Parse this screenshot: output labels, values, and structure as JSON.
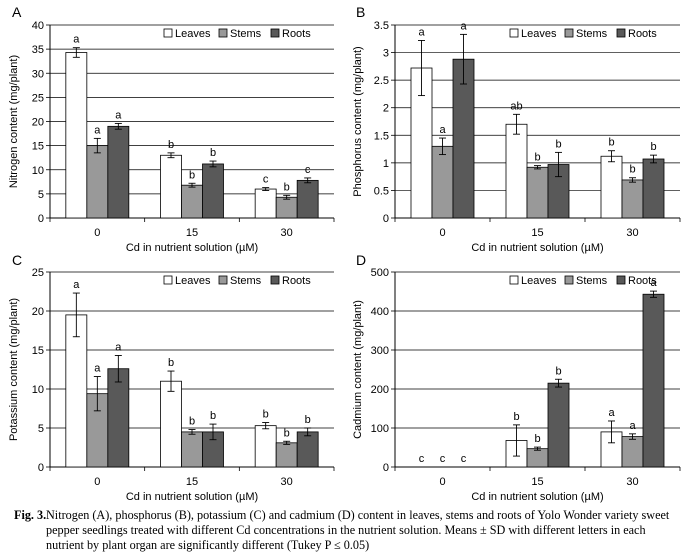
{
  "chart_data": [
    {
      "panel": "A",
      "type": "bar",
      "ylabel": "Nitrogen content (mg/plant)",
      "xlabel": "Cd in nutrient solution (µM)",
      "categories": [
        "0",
        "15",
        "30"
      ],
      "ylim": [
        0,
        40
      ],
      "yticks": [
        "0",
        "5",
        "10",
        "15",
        "20",
        "25",
        "30",
        "35",
        "40"
      ],
      "legend_position": "top-right",
      "series": [
        {
          "name": "Leaves",
          "values": [
            34.3,
            13.0,
            6.0
          ],
          "errors": [
            1.0,
            0.5,
            0.3
          ],
          "letters": [
            "a",
            "b",
            "c"
          ]
        },
        {
          "name": "Stems",
          "values": [
            15.0,
            6.8,
            4.3
          ],
          "errors": [
            1.5,
            0.4,
            0.4
          ],
          "letters": [
            "a",
            "b",
            "b"
          ]
        },
        {
          "name": "Roots",
          "values": [
            19.0,
            11.2,
            7.8
          ],
          "errors": [
            0.6,
            0.6,
            0.5
          ],
          "letters": [
            "a",
            "b",
            "c"
          ]
        }
      ]
    },
    {
      "panel": "B",
      "type": "bar",
      "ylabel": "Phosphorus content (mg/plant)",
      "xlabel": "Cd in nutrient solution (µM)",
      "categories": [
        "0",
        "15",
        "30"
      ],
      "ylim": [
        0,
        3.5
      ],
      "yticks": [
        "0",
        "0.5",
        "1",
        "1.5",
        "2",
        "2.5",
        "3",
        "3.5"
      ],
      "legend_position": "top-right",
      "series": [
        {
          "name": "Leaves",
          "values": [
            2.72,
            1.7,
            1.12
          ],
          "errors": [
            0.5,
            0.18,
            0.1
          ],
          "letters": [
            "a",
            "ab",
            "b"
          ]
        },
        {
          "name": "Stems",
          "values": [
            1.3,
            0.92,
            0.69
          ],
          "errors": [
            0.15,
            0.03,
            0.04
          ],
          "letters": [
            "a",
            "b",
            "b"
          ]
        },
        {
          "name": "Roots",
          "values": [
            2.88,
            0.97,
            1.07
          ],
          "errors": [
            0.45,
            0.22,
            0.07
          ],
          "letters": [
            "a",
            "b",
            "b"
          ]
        }
      ]
    },
    {
      "panel": "C",
      "type": "bar",
      "ylabel": "Potassium content (mg/plant)",
      "xlabel": "Cd in nutrient solution (µM)",
      "categories": [
        "0",
        "15",
        "30"
      ],
      "ylim": [
        0,
        25
      ],
      "yticks": [
        "0",
        "5",
        "10",
        "15",
        "20",
        "25"
      ],
      "legend_position": "top-right",
      "series": [
        {
          "name": "Leaves",
          "values": [
            19.5,
            11.0,
            5.3
          ],
          "errors": [
            2.8,
            1.3,
            0.4
          ],
          "letters": [
            "a",
            "b",
            "b"
          ]
        },
        {
          "name": "Stems",
          "values": [
            9.4,
            4.5,
            3.1
          ],
          "errors": [
            2.2,
            0.3,
            0.2
          ],
          "letters": [
            "a",
            "b",
            "b"
          ]
        },
        {
          "name": "Roots",
          "values": [
            12.6,
            4.5,
            4.5
          ],
          "errors": [
            1.7,
            1.0,
            0.5
          ],
          "letters": [
            "a",
            "b",
            "b"
          ]
        }
      ]
    },
    {
      "panel": "D",
      "type": "bar",
      "ylabel": "Cadmium content (mg/plant)",
      "xlabel": "Cd in nutrient solution (µM)",
      "categories": [
        "0",
        "15",
        "30"
      ],
      "ylim": [
        0,
        500
      ],
      "yticks": [
        "0",
        "100",
        "200",
        "300",
        "400",
        "500"
      ],
      "legend_position": "top-right",
      "series": [
        {
          "name": "Leaves",
          "values": [
            0,
            68,
            90
          ],
          "errors": [
            0,
            40,
            28
          ],
          "letters": [
            "c",
            "b",
            "a"
          ]
        },
        {
          "name": "Stems",
          "values": [
            0,
            47,
            78
          ],
          "errors": [
            0,
            4,
            7
          ],
          "letters": [
            "c",
            "b",
            "a"
          ]
        },
        {
          "name": "Roots",
          "values": [
            0,
            215,
            443
          ],
          "errors": [
            0,
            10,
            8
          ],
          "letters": [
            "c",
            "b",
            "a"
          ]
        }
      ]
    }
  ],
  "colors": {
    "Leaves": "#ffffff",
    "Stems": "#999999",
    "Roots": "#595959"
  },
  "caption": {
    "label": "Fig. 3.",
    "text": "Nitrogen (A), phosphorus (B), potassium (C) and cadmium (D) content in leaves, stems and roots of Yolo Wonder variety sweet pepper seedlings treated with different Cd concentrations in the nutrient solution. Means ± SD with different letters in each nutrient by plant organ are significantly different (Tukey P ≤ 0.05)"
  }
}
